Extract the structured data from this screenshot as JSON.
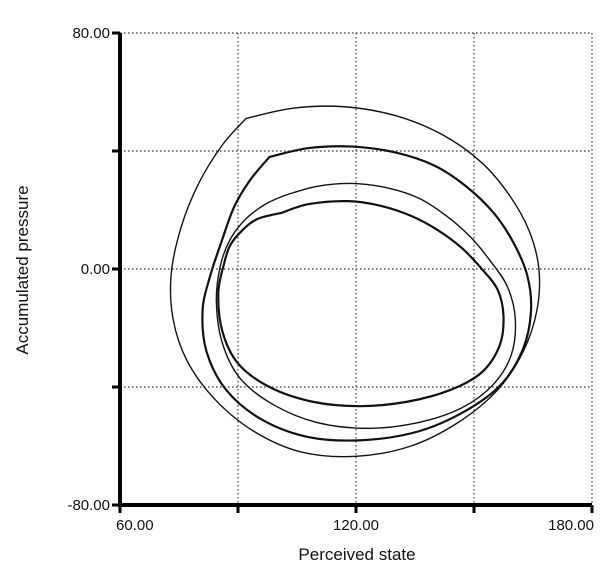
{
  "chart_data": {
    "type": "line",
    "title": "",
    "xlabel": "Perceived state",
    "ylabel": "Accumulated pressure",
    "xlim": [
      60,
      180
    ],
    "ylim": [
      -80,
      80
    ],
    "x_ticks": [
      60,
      90,
      120,
      150,
      180
    ],
    "y_ticks": [
      -80,
      -40,
      0,
      40,
      80
    ],
    "x_tick_labels": [
      "60.00",
      "",
      "120.00",
      "",
      "180.00"
    ],
    "y_tick_labels": [
      "-80.00",
      "",
      "0.00",
      "",
      "80.00"
    ],
    "grid": true,
    "grid_style": "dotted",
    "legend": "none",
    "colors": {
      "axis": "#000000",
      "grid": "#555555",
      "trace": "#111111"
    },
    "series": [
      {
        "values_note_free": true,
        "x": [
          101.0,
          108.0,
          118.0,
          126.0,
          134.0,
          141.0,
          147.0,
          152.0,
          156.0,
          157.5,
          156.5,
          152.0,
          144.0,
          133.0,
          121.0,
          109.0,
          98.0,
          90.0,
          86.0,
          85.0,
          86.5,
          88.0,
          91.0,
          95.0,
          101.0
        ],
        "y": [
          19.0,
          22.0,
          23.0,
          21.5,
          18.0,
          13.0,
          7.0,
          0.0,
          -7.0,
          -16.0,
          -26.0,
          -35.0,
          -41.0,
          -45.0,
          -46.5,
          -45.0,
          -40.0,
          -32.0,
          -21.0,
          -8.0,
          2.0,
          8.0,
          13.0,
          17.0,
          19.0
        ]
      },
      {
        "x": [
          102.0,
          110.0,
          119.0,
          128.0,
          136.0,
          143.0,
          149.0,
          154.0,
          158.5,
          160.5,
          159.5,
          155.0,
          147.0,
          136.0,
          123.0,
          110.0,
          99.0,
          90.5,
          86.0,
          84.5,
          85.5,
          88.0,
          92.0,
          97.0,
          102.0
        ],
        "y": [
          25.0,
          28.0,
          29.0,
          27.5,
          24.0,
          18.0,
          11.0,
          3.0,
          -6.0,
          -17.0,
          -29.0,
          -39.0,
          -47.0,
          -52.0,
          -54.0,
          -52.0,
          -46.0,
          -37.0,
          -25.0,
          -11.0,
          1.0,
          10.0,
          17.0,
          22.0,
          25.0
        ]
      },
      {
        "x": [
          98.0,
          108.0,
          119.0,
          130.0,
          140.0,
          148.0,
          155.0,
          160.0,
          163.5,
          164.5,
          162.5,
          157.0,
          148.0,
          136.0,
          122.0,
          108.0,
          96.0,
          87.0,
          82.0,
          81.0,
          83.0,
          86.0,
          89.0,
          93.0,
          98.0
        ],
        "y": [
          38.0,
          41.0,
          41.5,
          39.5,
          35.0,
          28.0,
          19.0,
          9.0,
          -2.0,
          -14.0,
          -27.0,
          -39.0,
          -48.0,
          -55.0,
          -58.0,
          -57.0,
          -51.0,
          -41.0,
          -28.0,
          -14.0,
          -2.0,
          10.0,
          21.0,
          30.0,
          38.0
        ]
      },
      {
        "x": [
          92.0,
          104.0,
          117.0,
          130.0,
          142.0,
          152.0,
          159.0,
          164.0,
          166.5,
          166.0,
          162.5,
          156.0,
          146.0,
          134.0,
          120.0,
          106.0,
          94.0,
          84.0,
          77.0,
          73.5,
          73.0,
          75.5,
          80.0,
          86.0,
          92.0
        ],
        "y": [
          51.0,
          54.5,
          55.0,
          52.0,
          45.5,
          36.0,
          25.0,
          13.0,
          0.0,
          -14.0,
          -28.0,
          -41.0,
          -52.0,
          -60.0,
          -63.5,
          -62.0,
          -55.0,
          -44.0,
          -31.0,
          -17.0,
          -2.0,
          14.0,
          29.0,
          42.0,
          51.0
        ]
      }
    ]
  }
}
